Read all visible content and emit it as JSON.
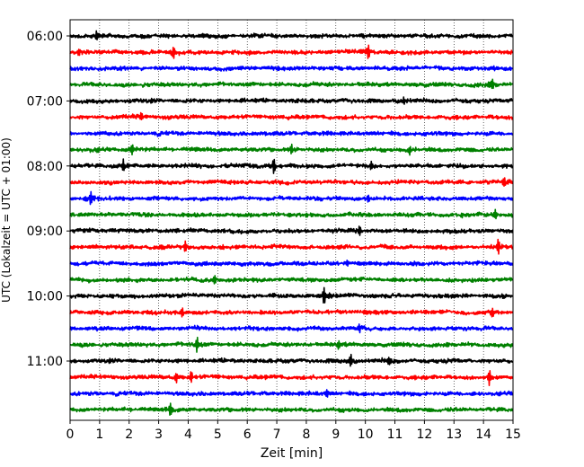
{
  "chart_data": {
    "type": "line",
    "title": "",
    "xlabel": "Zeit  [min]",
    "ylabel": "UTC (Lokalzeit = UTC + 01:00)",
    "xlim": [
      0,
      15
    ],
    "x_ticks": [
      0,
      1,
      2,
      3,
      4,
      5,
      6,
      7,
      8,
      9,
      10,
      11,
      12,
      13,
      14,
      15
    ],
    "y_tick_labels": [
      "06:00",
      "07:00",
      "08:00",
      "09:00",
      "10:00",
      "11:00"
    ],
    "grid_x": true,
    "grid_y": false,
    "trace_interval_min": 15,
    "trace_colors": [
      "#000000",
      "#ff0000",
      "#0000ff",
      "#008000"
    ],
    "traces": [
      {
        "start": "06:00",
        "color": "#000000",
        "spikes": [
          [
            0.9,
            4
          ]
        ]
      },
      {
        "start": "06:15",
        "color": "#ff0000",
        "spikes": [
          [
            0.3,
            3
          ],
          [
            3.5,
            6
          ],
          [
            10.1,
            8
          ]
        ]
      },
      {
        "start": "06:30",
        "color": "#0000ff",
        "spikes": []
      },
      {
        "start": "06:45",
        "color": "#008000",
        "spikes": [
          [
            14.3,
            6
          ]
        ]
      },
      {
        "start": "07:00",
        "color": "#000000",
        "spikes": [
          [
            11.3,
            3
          ]
        ]
      },
      {
        "start": "07:15",
        "color": "#ff0000",
        "spikes": [
          [
            2.4,
            4
          ]
        ]
      },
      {
        "start": "07:30",
        "color": "#0000ff",
        "spikes": []
      },
      {
        "start": "07:45",
        "color": "#008000",
        "spikes": [
          [
            2.1,
            6
          ],
          [
            7.5,
            5
          ],
          [
            11.5,
            4
          ]
        ]
      },
      {
        "start": "08:00",
        "color": "#000000",
        "spikes": [
          [
            1.8,
            6
          ],
          [
            6.9,
            9
          ],
          [
            10.2,
            4
          ]
        ]
      },
      {
        "start": "08:15",
        "color": "#ff0000",
        "spikes": [
          [
            14.7,
            5
          ]
        ]
      },
      {
        "start": "08:30",
        "color": "#0000ff",
        "spikes": [
          [
            0.7,
            8
          ],
          [
            10.1,
            4
          ]
        ]
      },
      {
        "start": "08:45",
        "color": "#008000",
        "spikes": [
          [
            14.4,
            5
          ]
        ]
      },
      {
        "start": "09:00",
        "color": "#000000",
        "spikes": [
          [
            9.8,
            5
          ]
        ]
      },
      {
        "start": "09:15",
        "color": "#ff0000",
        "spikes": [
          [
            3.9,
            6
          ],
          [
            14.5,
            8
          ]
        ]
      },
      {
        "start": "09:30",
        "color": "#0000ff",
        "spikes": [
          [
            9.4,
            3
          ]
        ]
      },
      {
        "start": "09:45",
        "color": "#008000",
        "spikes": [
          [
            4.9,
            4
          ]
        ]
      },
      {
        "start": "10:00",
        "color": "#000000",
        "spikes": [
          [
            8.6,
            10
          ]
        ]
      },
      {
        "start": "10:15",
        "color": "#ff0000",
        "spikes": [
          [
            3.8,
            5
          ],
          [
            14.3,
            5
          ]
        ]
      },
      {
        "start": "10:30",
        "color": "#0000ff",
        "spikes": [
          [
            9.8,
            4
          ]
        ]
      },
      {
        "start": "10:45",
        "color": "#008000",
        "spikes": [
          [
            4.3,
            8
          ],
          [
            9.1,
            4
          ]
        ]
      },
      {
        "start": "11:00",
        "color": "#000000",
        "spikes": [
          [
            9.5,
            7
          ],
          [
            10.8,
            4
          ]
        ]
      },
      {
        "start": "11:15",
        "color": "#ff0000",
        "spikes": [
          [
            3.6,
            5
          ],
          [
            4.1,
            6
          ],
          [
            14.2,
            8
          ]
        ]
      },
      {
        "start": "11:30",
        "color": "#0000ff",
        "spikes": [
          [
            8.7,
            4
          ]
        ]
      },
      {
        "start": "11:45",
        "color": "#008000",
        "spikes": [
          [
            3.4,
            7
          ]
        ]
      }
    ]
  }
}
